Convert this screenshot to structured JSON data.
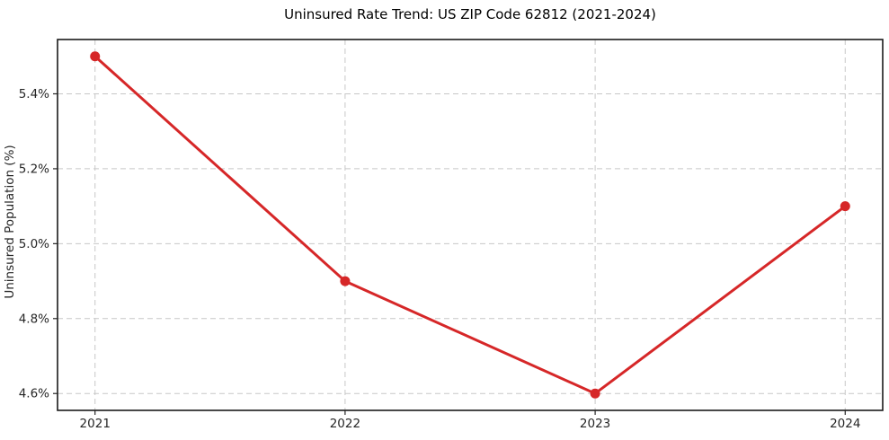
{
  "chart_data": {
    "type": "line",
    "title": "Uninsured Rate Trend: US ZIP Code 62812 (2021-2024)",
    "xlabel": "",
    "ylabel": "Uninsured Population (%)",
    "x": [
      2021,
      2022,
      2023,
      2024
    ],
    "categories": [
      "2021",
      "2022",
      "2023",
      "2024"
    ],
    "values": [
      5.5,
      4.9,
      4.6,
      5.1
    ],
    "yticks": [
      4.6,
      4.8,
      5.0,
      5.2,
      5.4
    ],
    "ytick_labels": [
      "4.6%",
      "4.8%",
      "5.0%",
      "5.2%",
      "5.4%"
    ],
    "xlim": [
      2020.85,
      2024.15
    ],
    "ylim": [
      4.555,
      5.545
    ],
    "grid": true,
    "grid_style": "dashed",
    "legend": false,
    "line_color": "#d62728",
    "marker": "circle",
    "grid_color": "#c7c7c7",
    "axis_color": "#1a1a1a",
    "tick_label_color": "#262626",
    "background_color": "#ffffff"
  }
}
